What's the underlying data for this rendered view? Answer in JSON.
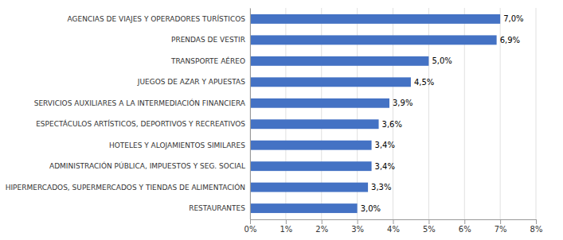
{
  "chart_data": {
    "type": "bar",
    "orientation": "horizontal",
    "categories": [
      "RESTAURANTES",
      "HIPERMERCADOS, SUPERMERCADOS Y TIENDAS DE ALIMENTACIÓN",
      "ADMINISTRACIÓN PÚBLICA, IMPUESTOS Y SEG. SOCIAL",
      "HOTELES  Y ALOJAMIENTOS SIMILARES",
      "ESPECTÁCULOS ARTÍSTICOS, DEPORTIVOS Y RECREATIVOS",
      "SERVICIOS AUXILIARES A LA INTERMEDIACIÓN FINANCIERA",
      "JUEGOS DE AZAR Y APUESTAS",
      "TRANSPORTE AÉREO",
      "PRENDAS DE VESTIR",
      "AGENCIAS DE VIAJES Y OPERADORES TURÍSTICOS"
    ],
    "values": [
      3.0,
      3.3,
      3.4,
      3.4,
      3.6,
      3.9,
      4.5,
      5.0,
      6.9,
      7.0
    ],
    "value_labels": [
      "3,0%",
      "3,3%",
      "3,4%",
      "3,4%",
      "3,6%",
      "3,9%",
      "4,5%",
      "5,0%",
      "6,9%",
      "7,0%"
    ],
    "data_labels": true,
    "color": "#4472C4",
    "xlim": [
      0,
      8
    ],
    "xticks": [
      {
        "value": 0,
        "label": "0%"
      },
      {
        "value": 1,
        "label": "1%"
      },
      {
        "value": 2,
        "label": "2%"
      },
      {
        "value": 3,
        "label": "3%"
      },
      {
        "value": 4,
        "label": "4%"
      },
      {
        "value": 5,
        "label": "5%"
      },
      {
        "value": 6,
        "label": "6%"
      },
      {
        "value": 7,
        "label": "7%"
      },
      {
        "value": 8,
        "label": "8%"
      }
    ],
    "grid": true
  }
}
